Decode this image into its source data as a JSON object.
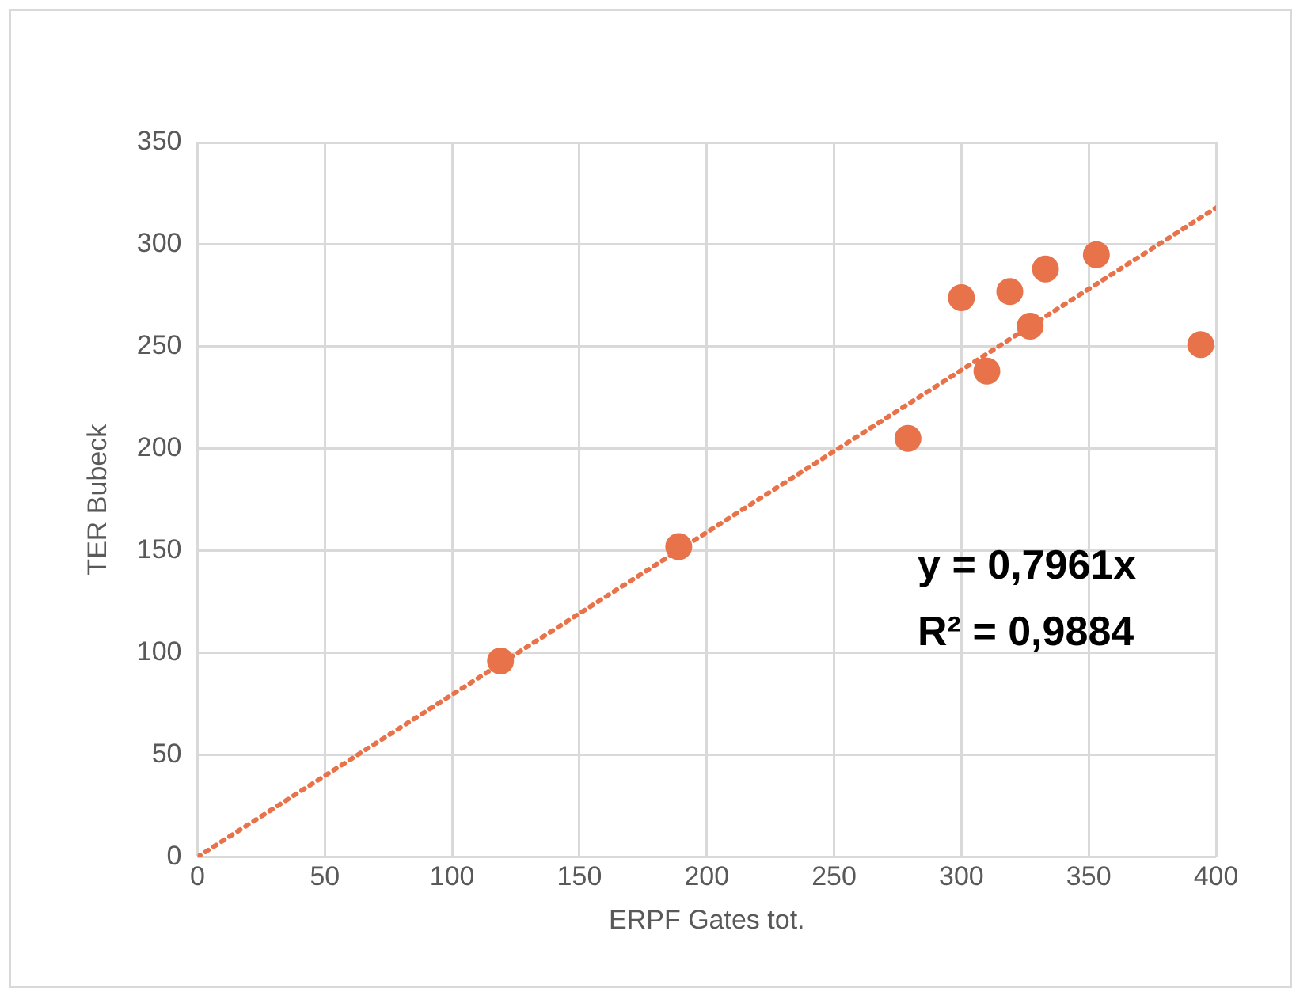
{
  "chart_data": {
    "type": "scatter",
    "xlabel": "ERPF Gates tot.",
    "ylabel": "TER Bubeck",
    "x": [
      119,
      189,
      279,
      300,
      310,
      319,
      327,
      333,
      353,
      394
    ],
    "series": [
      {
        "color": "#e8734a",
        "marker": "circle",
        "values": [
          96,
          152,
          205,
          274,
          238,
          277,
          260,
          288,
          295,
          251
        ]
      },
      {
        "type": "line",
        "color": "#e8734a",
        "marker": "none",
        "line_style": "dotted",
        "x": [
          0,
          400
        ],
        "values": [
          0,
          318
        ]
      }
    ],
    "xlim": [
      0,
      400
    ],
    "xticks": [
      0,
      50,
      100,
      150,
      200,
      250,
      300,
      350,
      400
    ],
    "ylim": [
      0,
      350
    ],
    "yticks": [
      0,
      50,
      100,
      150,
      200,
      250,
      300,
      350
    ],
    "grid": true,
    "legend": false,
    "annotations": [
      "y = 0,7961x",
      "R² = 0,9884"
    ]
  }
}
